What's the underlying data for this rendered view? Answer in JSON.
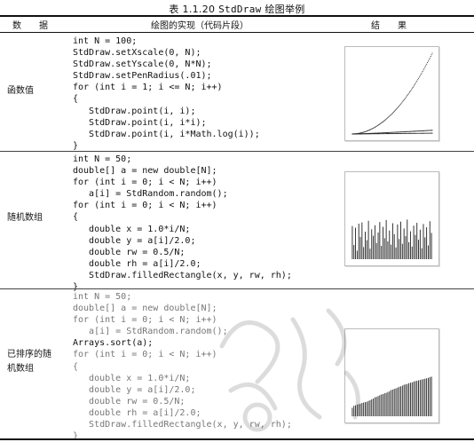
{
  "caption": {
    "prefix": "表 1.1.20",
    "mono": "StdDraw",
    "suffix": "绘图举例"
  },
  "headers": {
    "data": "数　　据",
    "impl": "绘图的实现（代码片段）",
    "result": "结　　果"
  },
  "rows": [
    {
      "label": "函数值",
      "code": [
        "int N = 100;",
        "StdDraw.setXscale(0, N);",
        "StdDraw.setYscale(0, N*N);",
        "StdDraw.setPenRadius(.01);",
        "for (int i = 1; i <= N; i++)",
        "{",
        "   StdDraw.point(i, i);",
        "   StdDraw.point(i, i*i);",
        "   StdDraw.point(i, i*Math.log(i));",
        "}"
      ]
    },
    {
      "label": "随机数组",
      "code": [
        "int N = 50;",
        "double[] a = new double[N];",
        "for (int i = 0; i < N; i++)",
        "   a[i] = StdRandom.random();",
        "for (int i = 0; i < N; i++)",
        "{",
        "   double x = 1.0*i/N;",
        "   double y = a[i]/2.0;",
        "   double rw = 0.5/N;",
        "   double rh = a[i]/2.0;",
        "   StdDraw.filledRectangle(x, y, rw, rh);",
        "}"
      ]
    },
    {
      "label1": "已排序的随",
      "label2": "机数组",
      "code": [
        "int N = 50;",
        "double[] a = new double[N];",
        "for (int i = 0; i < N; i++)",
        "   a[i] = StdRandom.random();",
        "Arrays.sort(a);",
        "for (int i = 0; i < N; i++)",
        "{",
        "   double x = 1.0*i/N;",
        "   double y = a[i]/2.0;",
        "   double rw = 0.5/N;",
        "   double rh = a[i]/2.0;",
        "   StdDraw.filledRectangle(x, y, rw, rh);",
        "}"
      ]
    }
  ],
  "plots": {
    "function_values": {
      "type": "scatter",
      "n": 100,
      "series": [
        "i",
        "i*i",
        "i*log(i)"
      ]
    },
    "random_bars": [
      0.82,
      0.35,
      0.78,
      0.21,
      0.88,
      0.55,
      0.91,
      0.3,
      0.68,
      0.47,
      0.95,
      0.26,
      0.74,
      0.58,
      0.84,
      0.4,
      0.66,
      0.92,
      0.33,
      0.8,
      0.52,
      0.97,
      0.44,
      0.71,
      0.36,
      0.89,
      0.62,
      0.29,
      0.86,
      0.5,
      0.93,
      0.38,
      0.76,
      0.57,
      0.98,
      0.42,
      0.69,
      0.31,
      0.83,
      0.6,
      0.9,
      0.48,
      0.73,
      0.27,
      0.87,
      0.54,
      0.79,
      0.34,
      0.94,
      0.65
    ],
    "sorted_bars_count": 50
  },
  "colors": {
    "ink": "#111111",
    "muted": "#777777",
    "frame": "#bbbbbb"
  }
}
